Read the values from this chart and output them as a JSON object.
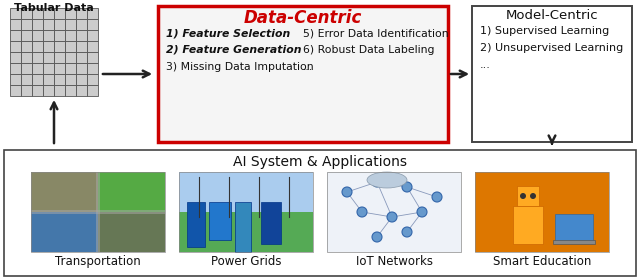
{
  "fig_width": 6.4,
  "fig_height": 2.78,
  "dpi": 100,
  "bg_color": "#ffffff",
  "bottom_border_color": "#444444",
  "data_centric_box_color": "#cc0000",
  "model_centric_box_color": "#444444",
  "arrow_color": "#222222",
  "title_top": "Tabular Data",
  "data_centric_title": "Data-Centric",
  "data_centric_items_left": [
    "1) Feature Selection",
    "2) Feature Generation",
    "3) Missing Data Imputation"
  ],
  "data_centric_items_right": [
    "5) Error Data Identification",
    "6) Robust Data Labeling",
    "..."
  ],
  "model_centric_title": "Model-Centric",
  "model_centric_items": [
    "1) Supervised Learning",
    "2) Unsupervised Learning",
    "..."
  ],
  "bottom_title": "AI System & Applications",
  "app_labels": [
    "Transportation",
    "Power Grids",
    "IoT Networks",
    "Smart Education"
  ],
  "grid_rows": 8,
  "grid_cols": 8,
  "dc_title_color": "#cc0000",
  "dc_box_bg": "#f5f5f5"
}
